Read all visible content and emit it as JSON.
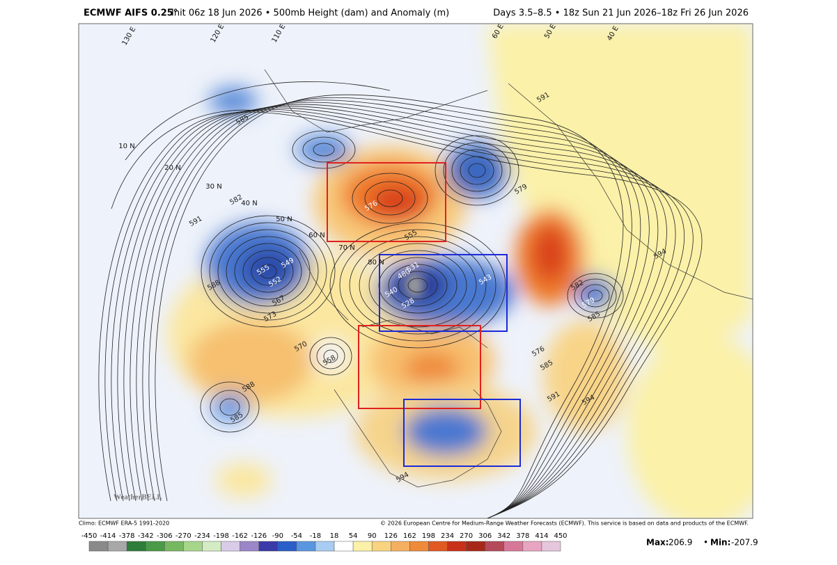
{
  "header": {
    "model": "ECMWF AIFS 0.25°",
    "init": "Init 06z 18 Jun 2026 • 500mb Height (dam) and Anomaly (m)",
    "valid": "Days 3.5–8.5 • 18z Sun 21 Jun 2026–18z Fri 26 Jun 2026"
  },
  "map": {
    "latitude_labels": [
      "10 N",
      "20 N",
      "30 N",
      "40 N",
      "50 N",
      "60 N",
      "70 N",
      "80 N"
    ],
    "longitude_labels": [
      "130 E",
      "120 E",
      "110 E",
      "60 E",
      "50 E",
      "40 E"
    ],
    "contour_labels": [
      "576",
      "555",
      "531",
      "480",
      "543",
      "540",
      "528",
      "549",
      "555",
      "552",
      "567",
      "573",
      "570",
      "558",
      "588",
      "585",
      "582",
      "591",
      "588",
      "585",
      "579",
      "585",
      "582",
      "576",
      "585",
      "591",
      "594",
      "594",
      "591",
      "579",
      "594"
    ],
    "logo": "WeatherBELL"
  },
  "footer": {
    "climo": "Climo: ECMWF ERA-5 1991-2020",
    "copyright": "© 2026 European Centre for Medium-Range Weather Forecasts (ECMWF). This service is based on data and products of the ECMWF.",
    "colorbar_labels": [
      -450,
      -414,
      -378,
      -342,
      -306,
      -270,
      -234,
      -198,
      -162,
      -126,
      -90,
      -54,
      -18,
      18,
      54,
      90,
      126,
      162,
      198,
      234,
      270,
      306,
      342,
      378,
      414,
      450
    ],
    "max_label": "Max:",
    "max": 206.9,
    "min_label": "Min:",
    "min": -207.9
  }
}
